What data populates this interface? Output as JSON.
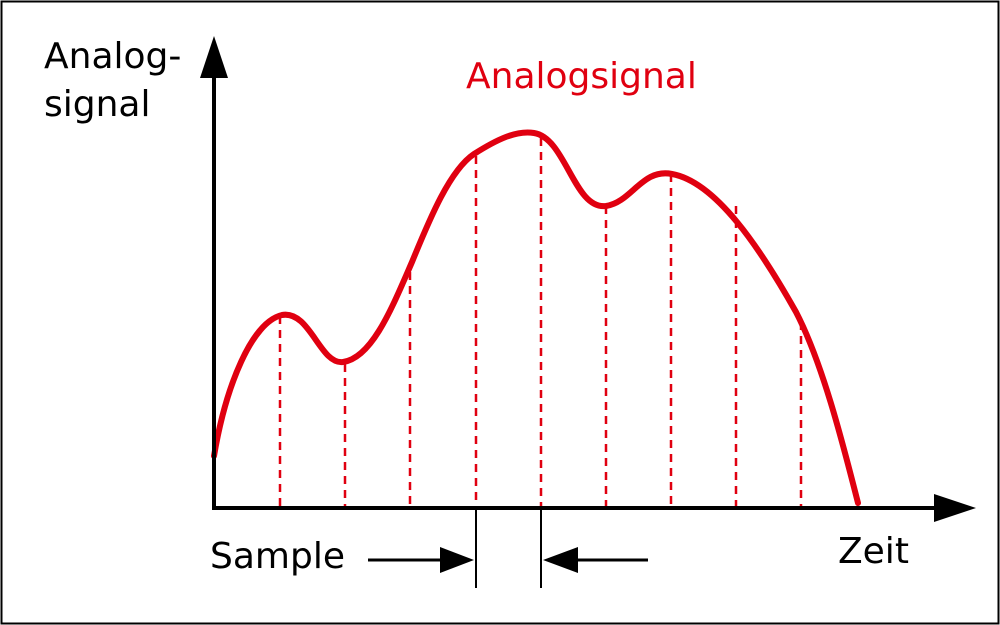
{
  "diagram": {
    "y_axis_label_line1": "Analog-",
    "y_axis_label_line2": "signal",
    "signal_label": "Analogsignal",
    "x_axis_label": "Zeit",
    "sample_label": "Sample"
  },
  "colors": {
    "signal": "#e00010",
    "axis": "#000000",
    "frame": "#000000",
    "background": "#ffffff"
  },
  "samples": {
    "count": 9
  }
}
